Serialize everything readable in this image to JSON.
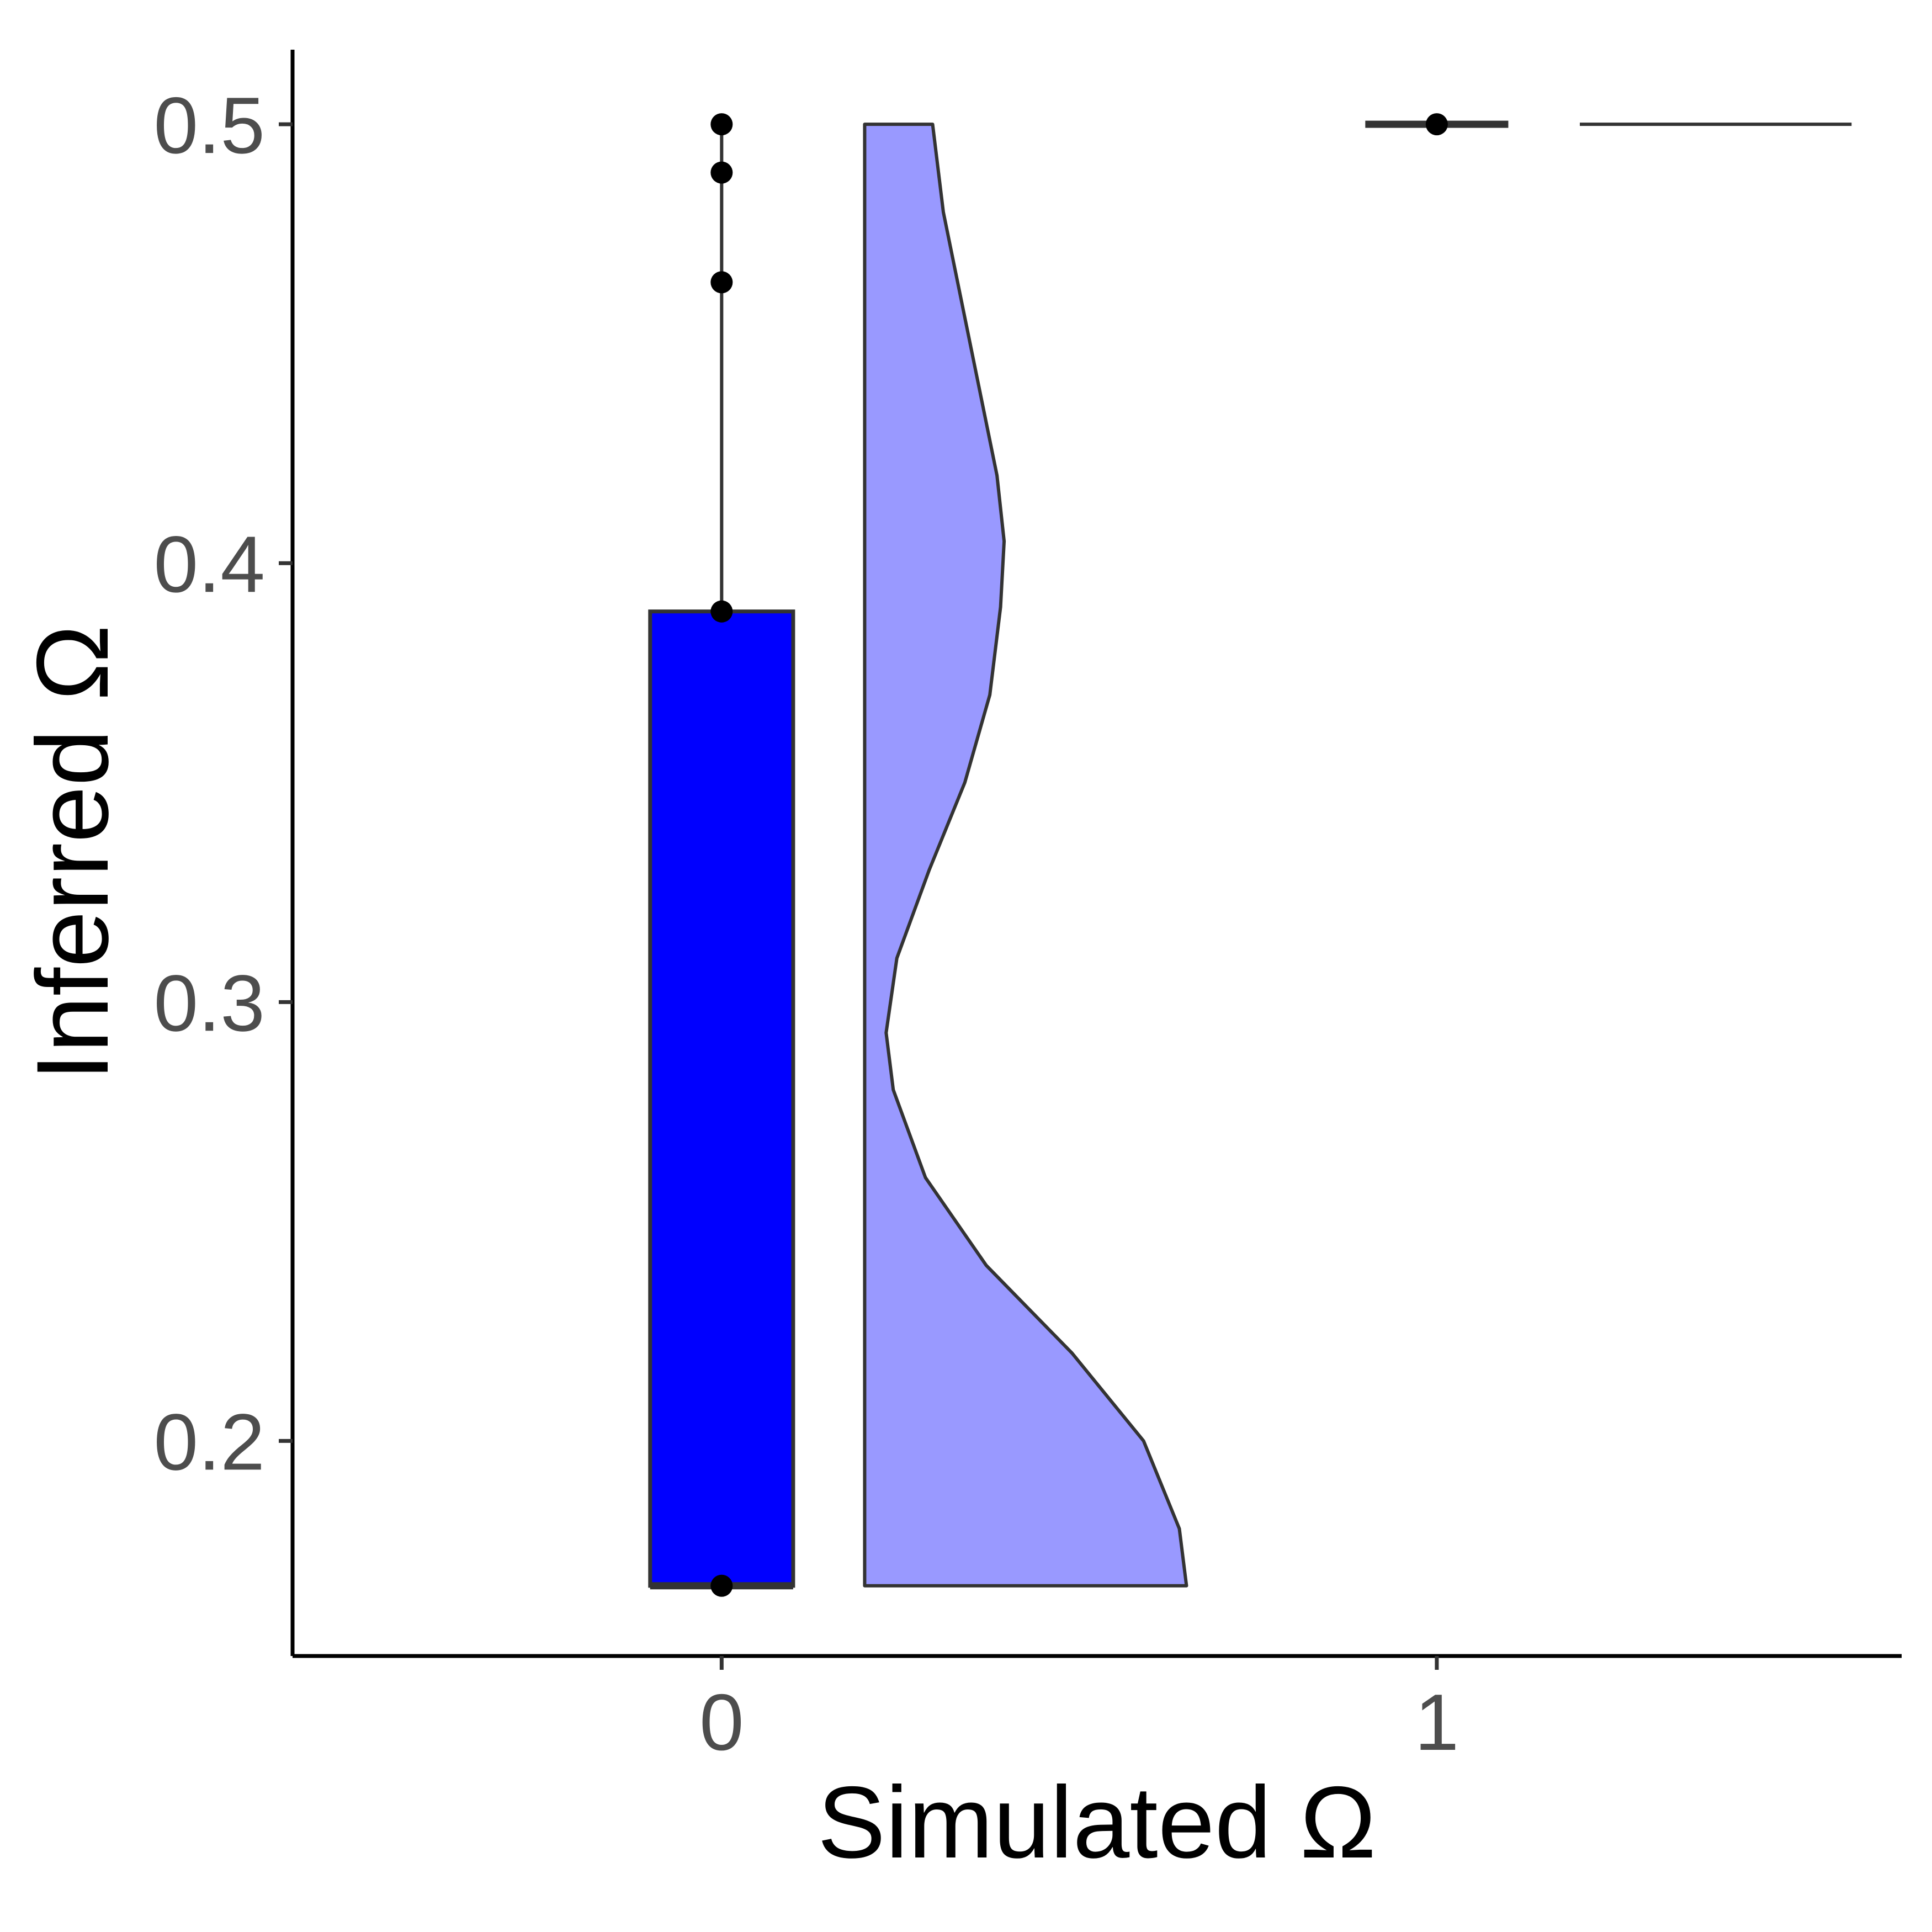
{
  "chart_data": {
    "type": "raincloud",
    "xlabel": "Simulated Ω",
    "ylabel": "Inferred Ω",
    "x_categories": [
      "0",
      "1"
    ],
    "y_ticks": [
      "0.2",
      "0.3",
      "0.4",
      "0.5"
    ],
    "ylim": [
      0.151,
      0.517
    ],
    "groups": [
      {
        "x": "0",
        "points": [
          0.167,
          0.389,
          0.464,
          0.489,
          0.5
        ],
        "box": {
          "lower": 0.167,
          "upper": 0.389,
          "median": 0.167,
          "whisker_low": 0.167,
          "whisker_high": 0.5
        },
        "box_color": "#0000FF",
        "density": {
          "color": "#9999FF",
          "y": [
            0.167,
            0.18,
            0.2,
            0.22,
            0.24,
            0.26,
            0.28,
            0.293,
            0.31,
            0.33,
            0.35,
            0.37,
            0.39,
            0.405,
            0.42,
            0.44,
            0.46,
            0.48,
            0.5
          ],
          "width": [
            0.45,
            0.44,
            0.39,
            0.29,
            0.17,
            0.085,
            0.04,
            0.03,
            0.045,
            0.09,
            0.14,
            0.175,
            0.19,
            0.195,
            0.185,
            0.16,
            0.135,
            0.11,
            0.095
          ]
        }
      },
      {
        "x": "1",
        "points": [
          0.5
        ],
        "box": {
          "lower": 0.5,
          "upper": 0.5,
          "median": 0.5,
          "whisker_low": 0.5,
          "whisker_high": 0.5
        },
        "box_color": "#0000FF",
        "density": {
          "color": "#9999FF",
          "y": [
            0.5
          ],
          "width": [
            0.38
          ]
        }
      }
    ],
    "colors": {
      "outline": "#333333",
      "axis": "#000000",
      "point": "#000000"
    }
  }
}
